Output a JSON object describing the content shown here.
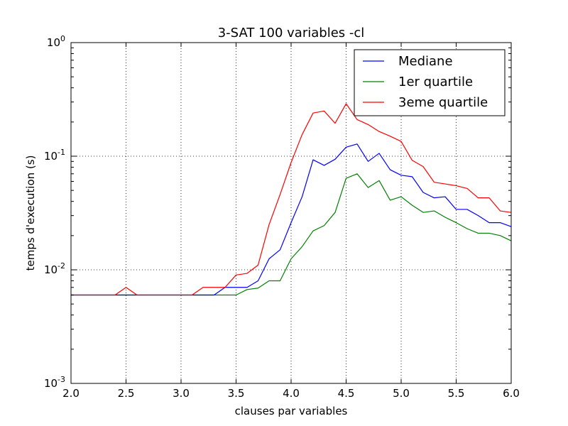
{
  "chart_data": {
    "type": "line",
    "title": "3-SAT 100 variables -cl",
    "xlabel": "clauses par variables",
    "ylabel": "temps d'execution (s)",
    "xlim": [
      2.0,
      6.0
    ],
    "ylim": [
      0.001,
      1
    ],
    "yscale": "log",
    "grid": true,
    "legend_position": "top-right",
    "x_ticks": [
      "2.0",
      "2.5",
      "3.0",
      "3.5",
      "4.0",
      "4.5",
      "5.0",
      "5.5",
      "6.0"
    ],
    "y_ticks": [
      {
        "value": 1,
        "base": "10",
        "exp": "0"
      },
      {
        "value": 0.1,
        "base": "10",
        "exp": "-1"
      },
      {
        "value": 0.01,
        "base": "10",
        "exp": "-2"
      },
      {
        "value": 0.001,
        "base": "10",
        "exp": "-3"
      }
    ],
    "x": [
      2.0,
      2.1,
      2.2,
      2.3,
      2.4,
      2.5,
      2.6,
      2.7,
      2.8,
      2.9,
      3.0,
      3.1,
      3.2,
      3.3,
      3.4,
      3.5,
      3.6,
      3.7,
      3.8,
      3.9,
      4.0,
      4.1,
      4.2,
      4.3,
      4.4,
      4.5,
      4.6,
      4.7,
      4.8,
      4.9,
      5.0,
      5.1,
      5.2,
      5.3,
      5.4,
      5.5,
      5.6,
      5.7,
      5.8,
      5.9,
      6.0
    ],
    "series": [
      {
        "name": "Mediane",
        "color": "#0000ff",
        "values": [
          0.006,
          0.006,
          0.006,
          0.006,
          0.006,
          0.006,
          0.006,
          0.006,
          0.006,
          0.006,
          0.006,
          0.006,
          0.006,
          0.006,
          0.007,
          0.007,
          0.007,
          0.008,
          0.0125,
          0.015,
          0.026,
          0.044,
          0.093,
          0.083,
          0.094,
          0.12,
          0.128,
          0.09,
          0.106,
          0.076,
          0.068,
          0.066,
          0.048,
          0.043,
          0.044,
          0.034,
          0.034,
          0.03,
          0.026,
          0.026,
          0.024
        ]
      },
      {
        "name": "1er quartile",
        "color": "#008000",
        "values": [
          0.006,
          0.006,
          0.006,
          0.006,
          0.006,
          0.006,
          0.006,
          0.006,
          0.006,
          0.006,
          0.006,
          0.006,
          0.006,
          0.006,
          0.006,
          0.006,
          0.0067,
          0.0069,
          0.008,
          0.008,
          0.0125,
          0.016,
          0.022,
          0.0245,
          0.032,
          0.064,
          0.07,
          0.053,
          0.061,
          0.041,
          0.044,
          0.037,
          0.032,
          0.033,
          0.029,
          0.026,
          0.023,
          0.021,
          0.021,
          0.02,
          0.018
        ]
      },
      {
        "name": "3eme quartile",
        "color": "#ff0000",
        "values": [
          0.006,
          0.006,
          0.006,
          0.006,
          0.006,
          0.007,
          0.006,
          0.006,
          0.006,
          0.006,
          0.006,
          0.006,
          0.007,
          0.007,
          0.007,
          0.009,
          0.0093,
          0.011,
          0.025,
          0.046,
          0.088,
          0.155,
          0.24,
          0.25,
          0.195,
          0.29,
          0.21,
          0.19,
          0.165,
          0.15,
          0.135,
          0.092,
          0.081,
          0.059,
          0.057,
          0.055,
          0.052,
          0.043,
          0.043,
          0.033,
          0.032
        ]
      }
    ]
  }
}
